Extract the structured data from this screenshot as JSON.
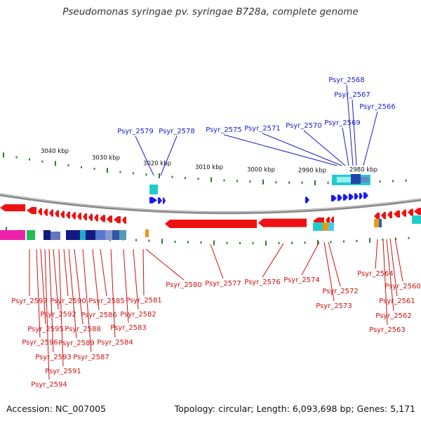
{
  "title": "Pseudomonas syringae pv. syringae B728a, complete genome",
  "footer": {
    "accession": "Accession: NC_007005",
    "topology": "Topology: circular; Length: 6,093,698 bp; Genes: 5,171"
  },
  "scale_labels": [
    "3040 kbp",
    "3030 kbp",
    "3020 kbp",
    "3010 kbp",
    "3000 kbp",
    "2990 kbp",
    "2980 kbp"
  ],
  "forward_labels": [
    "Psyr_2579",
    "Psyr_2578",
    "Psyr_2575",
    "Psyr_2571",
    "Psyr_2570",
    "Psyr_2569",
    "Psyr_2568",
    "Psyr_2567",
    "Psyr_2566"
  ],
  "reverse_labels": [
    "Psyr_2580",
    "Psyr_2577",
    "Psyr_2576",
    "Psyr_2574",
    "Psyr_2572",
    "Psyr_2573",
    "Psyr_2581",
    "Psyr_2582",
    "Psyr_2583",
    "Psyr_2584",
    "Psyr_2585",
    "Psyr_2586",
    "Psyr_2587",
    "Psyr_2588",
    "Psyr_2589",
    "Psyr_2590",
    "Psyr_2591",
    "Psyr_2592",
    "Psyr_2593",
    "Psyr_2594",
    "Psyr_2595",
    "Psyr_2596",
    "Psyr_2597",
    "Psyr_2564",
    "Psyr_2560",
    "Psyr_2561",
    "Psyr_2562",
    "Psyr_2563"
  ],
  "colors": {
    "reverse_gene": "#ee1111",
    "forward_gene": "#1a1aee",
    "backbone": "#888888",
    "tick": "#2a7a2a",
    "forward_label": "#1a1acc",
    "reverse_label": "#cc1111",
    "cyan_feature": "#22cccc",
    "orange_feature": "#ee9911",
    "magenta_feature": "#ee22aa",
    "green_feature": "#22bb55",
    "navy_feature": "#101a80"
  }
}
